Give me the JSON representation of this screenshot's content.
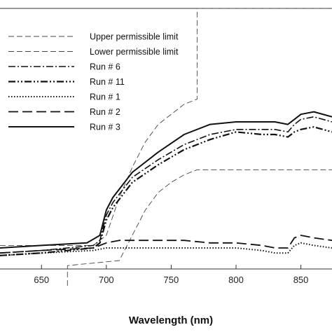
{
  "chart_data": {
    "type": "line",
    "title": "",
    "xlabel": "Wavelength (nm)",
    "ylabel": "",
    "xlim": [
      618,
      874
    ],
    "ylim": [
      0,
      100
    ],
    "xticks": [
      650,
      700,
      750,
      800,
      850
    ],
    "grid": false,
    "legend_position": "top-left",
    "series": [
      {
        "name": "Upper permissible limit",
        "style": "dash-thin",
        "x": [
          618,
          690,
          700,
          710,
          720,
          730,
          740,
          750,
          760,
          770,
          770,
          874
        ],
        "y": [
          6,
          6,
          10,
          25,
          37,
          47,
          54,
          58,
          62,
          64,
          100,
          100
        ]
      },
      {
        "name": "Lower permissible limit",
        "style": "dash-thin",
        "x": [
          670,
          670,
          710,
          720,
          730,
          740,
          750,
          760,
          770,
          874
        ],
        "y": [
          -10,
          -2,
          0,
          10,
          20,
          27,
          31,
          34,
          36,
          36
        ]
      },
      {
        "name": "Run # 6",
        "style": "dashdot",
        "x": [
          618,
          650,
          690,
          695,
          700,
          705,
          720,
          740,
          760,
          780,
          800,
          820,
          830,
          840,
          845,
          850,
          860,
          874
        ],
        "y": [
          3,
          4,
          6,
          8,
          18,
          23,
          33,
          40,
          46,
          50,
          52,
          52,
          52,
          51,
          54,
          56,
          57,
          55
        ]
      },
      {
        "name": "Run # 11",
        "style": "dashdotdot",
        "x": [
          618,
          650,
          690,
          695,
          700,
          705,
          720,
          740,
          760,
          780,
          800,
          820,
          830,
          840,
          845,
          850,
          860,
          874
        ],
        "y": [
          2,
          3,
          5,
          7,
          16,
          21,
          31,
          38,
          44,
          48,
          51,
          50,
          50,
          49,
          51,
          52,
          53,
          51
        ]
      },
      {
        "name": "Run # 1",
        "style": "dotted",
        "x": [
          618,
          650,
          690,
          700,
          720,
          740,
          760,
          780,
          800,
          820,
          830,
          840,
          845,
          850,
          860,
          874
        ],
        "y": [
          2,
          3,
          4,
          5,
          5,
          5,
          5,
          5,
          5,
          4,
          3,
          3,
          6,
          7,
          6,
          5
        ]
      },
      {
        "name": "Run # 2",
        "style": "longdash",
        "x": [
          618,
          650,
          690,
          700,
          710,
          720,
          740,
          760,
          780,
          800,
          820,
          830,
          840,
          845,
          850,
          860,
          874
        ],
        "y": [
          3,
          4,
          5,
          7,
          8,
          8,
          8,
          8,
          7,
          7,
          6,
          5,
          5,
          9,
          10,
          9,
          8
        ]
      },
      {
        "name": "Run # 3",
        "style": "solid",
        "x": [
          618,
          650,
          685,
          695,
          700,
          705,
          720,
          740,
          760,
          780,
          800,
          820,
          830,
          840,
          845,
          850,
          860,
          874
        ],
        "y": [
          5,
          6,
          7,
          10,
          20,
          25,
          35,
          43,
          50,
          54,
          55,
          55,
          55,
          54,
          56,
          58,
          59,
          57
        ]
      }
    ]
  },
  "colors": {
    "line": "#111111",
    "limit": "#444444",
    "frame": "#333333"
  }
}
